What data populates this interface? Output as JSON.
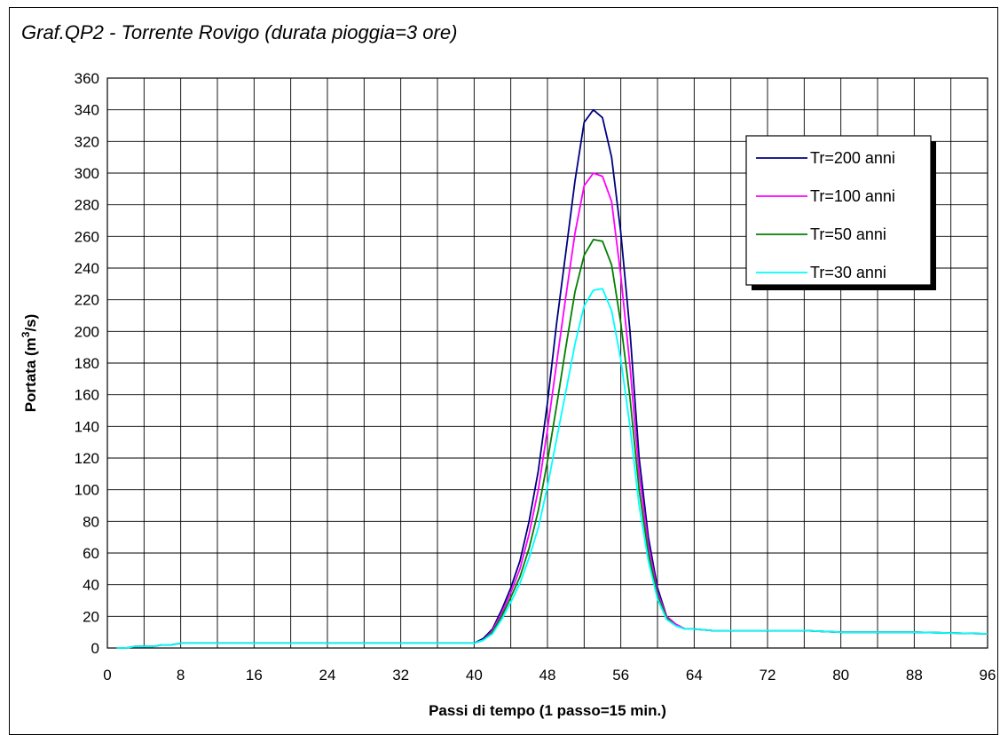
{
  "chart_data": {
    "type": "line",
    "title": "Graf.QP2 - Torrente Rovigo (durata pioggia=3 ore)",
    "xlabel": "Passi di tempo (1 passo=15 min.)",
    "ylabel_main": "Portata (m",
    "ylabel_sup": "3",
    "ylabel_tail": "/s)",
    "xlim": [
      0,
      96
    ],
    "ylim": [
      0,
      360
    ],
    "x_ticks": [
      "0",
      "8",
      "16",
      "24",
      "32",
      "40",
      "48",
      "56",
      "64",
      "72",
      "80",
      "88",
      "96"
    ],
    "y_ticks": [
      "0",
      "20",
      "40",
      "60",
      "80",
      "100",
      "120",
      "140",
      "160",
      "180",
      "200",
      "220",
      "240",
      "260",
      "280",
      "300",
      "320",
      "340",
      "360"
    ],
    "grid": true,
    "legend_position": "right",
    "x": [
      1,
      2,
      3,
      4,
      5,
      6,
      7,
      8,
      16,
      24,
      32,
      40,
      41,
      42,
      43,
      44,
      45,
      46,
      47,
      48,
      49,
      50,
      51,
      52,
      53,
      54,
      55,
      56,
      57,
      58,
      59,
      60,
      61,
      62,
      63,
      64,
      66,
      70,
      76,
      80,
      88,
      96
    ],
    "series": [
      {
        "name": "Tr=200 anni",
        "color": "#000080",
        "values": [
          0,
          0,
          1,
          1,
          1,
          2,
          2,
          3,
          3,
          3,
          3,
          3,
          6,
          12,
          24,
          38,
          55,
          80,
          112,
          155,
          205,
          250,
          295,
          332,
          340,
          335,
          310,
          262,
          200,
          120,
          70,
          38,
          20,
          15,
          12,
          12,
          11,
          11,
          11,
          10,
          10,
          9
        ]
      },
      {
        "name": "Tr=100 anni",
        "color": "#FF00FF",
        "values": [
          0,
          0,
          1,
          1,
          1,
          2,
          2,
          3,
          3,
          3,
          3,
          3,
          5,
          11,
          22,
          35,
          50,
          72,
          100,
          138,
          180,
          222,
          262,
          292,
          300,
          298,
          282,
          235,
          178,
          110,
          65,
          35,
          20,
          15,
          12,
          12,
          11,
          11,
          11,
          10,
          10,
          9
        ]
      },
      {
        "name": "Tr=50 anni",
        "color": "#008000",
        "values": [
          0,
          0,
          1,
          1,
          1,
          2,
          2,
          3,
          3,
          3,
          3,
          3,
          5,
          10,
          20,
          32,
          45,
          63,
          87,
          118,
          153,
          190,
          225,
          248,
          258,
          257,
          242,
          205,
          158,
          100,
          60,
          33,
          19,
          14,
          12,
          12,
          11,
          11,
          11,
          10,
          10,
          9
        ]
      },
      {
        "name": "Tr=30 anni",
        "color": "#00FFFF",
        "values": [
          0,
          0,
          1,
          1,
          1,
          2,
          2,
          3,
          3,
          3,
          3,
          3,
          5,
          9,
          18,
          29,
          41,
          57,
          76,
          102,
          132,
          162,
          192,
          216,
          226,
          227,
          213,
          182,
          140,
          90,
          55,
          31,
          18,
          14,
          12,
          12,
          11,
          11,
          11,
          10,
          10,
          9
        ]
      }
    ]
  }
}
